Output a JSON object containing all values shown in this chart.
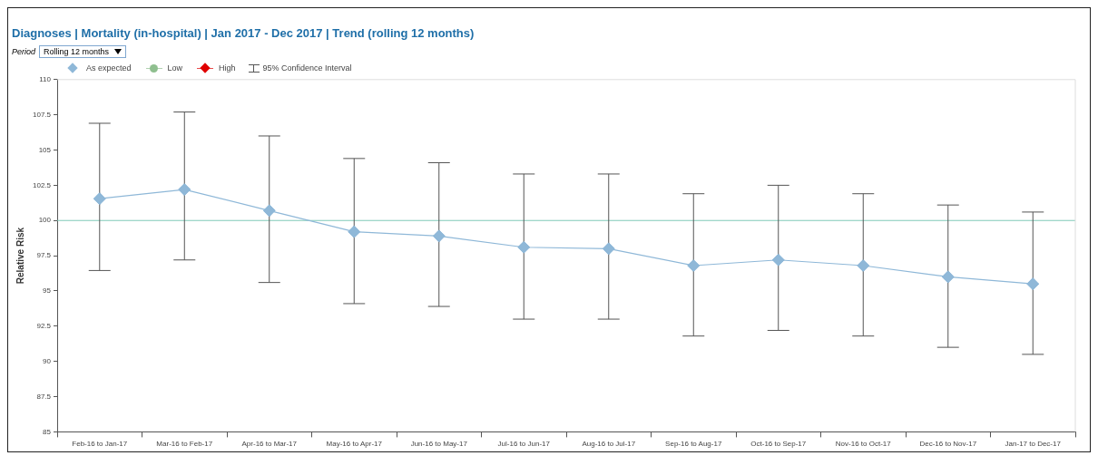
{
  "chart_data": {
    "type": "line",
    "title": "Diagnoses | Mortality (in-hospital) | Jan 2017 - Dec 2017 | Trend (rolling 12 months)",
    "ylabel": "Relative Risk",
    "categories": [
      "Feb-16 to Jan-17",
      "Mar-16 to Feb-17",
      "Apr-16 to Mar-17",
      "May-16 to Apr-17",
      "Jun-16 to May-17",
      "Jul-16 to Jun-17",
      "Aug-16 to Jul-17",
      "Sep-16 to Aug-17",
      "Oct-16 to Sep-17",
      "Nov-16 to Oct-17",
      "Dec-16 to Nov-17",
      "Jan-17 to Dec-17"
    ],
    "series": [
      {
        "name": "As expected",
        "color": "#8fb8d8",
        "marker": "diamond",
        "values": [
          101.55,
          102.2,
          100.7,
          99.2,
          98.9,
          98.1,
          98.0,
          96.8,
          97.2,
          96.8,
          96.0,
          95.5
        ],
        "errors": [
          [
            96.45,
            106.9
          ],
          [
            97.2,
            107.7
          ],
          [
            95.6,
            106.0
          ],
          [
            94.1,
            104.4
          ],
          [
            93.9,
            104.1
          ],
          [
            93.0,
            103.3
          ],
          [
            93.0,
            103.3
          ],
          [
            91.8,
            101.9
          ],
          [
            92.2,
            102.5
          ],
          [
            91.8,
            101.9
          ],
          [
            91.0,
            101.1
          ],
          [
            90.5,
            100.6
          ]
        ]
      },
      {
        "name": "Low",
        "color": "#8fbf8f",
        "marker": "circle",
        "values": [
          null,
          null,
          null,
          null,
          null,
          null,
          null,
          null,
          null,
          null,
          null,
          null
        ]
      },
      {
        "name": "High",
        "color": "#e00000",
        "marker": "diamond",
        "values": [
          null,
          null,
          null,
          null,
          null,
          null,
          null,
          null,
          null,
          null,
          null,
          null
        ]
      }
    ],
    "ylim": [
      85,
      110
    ],
    "yticks": [
      85,
      87.5,
      90,
      92.5,
      95,
      97.5,
      100,
      102.5,
      105,
      107.5,
      110
    ],
    "ref_lines": [
      {
        "axis": "y",
        "value": 100,
        "color": "#7fc9b8"
      }
    ],
    "grid": false,
    "legend": "top left",
    "annotations": [
      "95% Confidence Interval",
      "Period",
      "Rolling 12 months"
    ]
  }
}
